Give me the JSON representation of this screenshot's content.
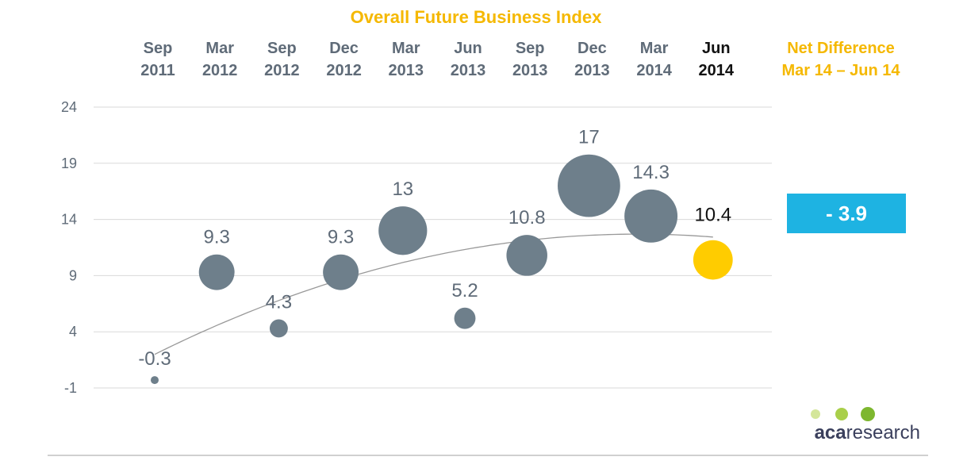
{
  "chart_data": {
    "type": "scatter",
    "title": "Overall Future Business Index",
    "categories": [
      [
        "Sep",
        "2011"
      ],
      [
        "Mar",
        "2012"
      ],
      [
        "Sep",
        "2012"
      ],
      [
        "Dec",
        "2012"
      ],
      [
        "Mar",
        "2013"
      ],
      [
        "Jun",
        "2013"
      ],
      [
        "Sep",
        "2013"
      ],
      [
        "Dec",
        "2013"
      ],
      [
        "Mar",
        "2014"
      ],
      [
        "Jun",
        "2014"
      ]
    ],
    "values": [
      -0.3,
      9.3,
      4.3,
      9.3,
      13,
      5.2,
      10.8,
      17,
      14.3,
      10.4
    ],
    "labels": [
      "-0.3",
      "9.3",
      "4.3",
      "9.3",
      "13",
      "5.2",
      "10.8",
      "17",
      "14.3",
      "10.4"
    ],
    "highlight_index": 9,
    "yticks": [
      24,
      19,
      14,
      9,
      4,
      -1
    ],
    "ylim": [
      -1,
      24
    ],
    "grid": true,
    "trendline": true,
    "colors": {
      "bubble": "#6e7f8b",
      "highlight": "#ffcc00",
      "title": "#f5b800",
      "net_box": "#1eb3e2",
      "trend": "#999999",
      "axis_text": "#5f6b78"
    },
    "net_difference": {
      "title_line1": "Net Difference",
      "title_line2": "Mar 14 – Jun 14",
      "value": "- 3.9"
    }
  },
  "logo": {
    "brand_bold": "aca",
    "brand_rest": "research",
    "dot_colors": [
      "#d4e69a",
      "#a9cf4a",
      "#7db72f"
    ]
  }
}
